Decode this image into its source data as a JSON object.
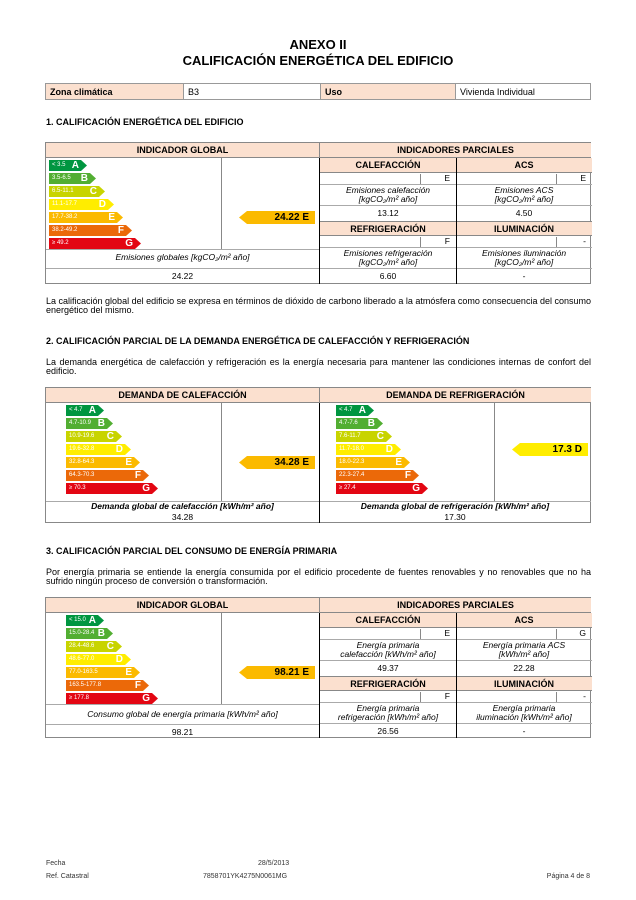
{
  "header": {
    "annex": "ANEXO II",
    "title": "CALIFICACIÓN ENERGÉTICA DEL EDIFICIO"
  },
  "info": {
    "zona_label": "Zona climática",
    "zona_value": "B3",
    "uso_label": "Uso",
    "uso_value": "Vivienda Individual"
  },
  "colors": {
    "A": "#009640",
    "B": "#52ae32",
    "C": "#c8d400",
    "D": "#ffed00",
    "E": "#fbba00",
    "F": "#eb6909",
    "G": "#e30613",
    "header_bg": "#fbe0cf"
  },
  "s1": {
    "heading": "1. CALIFICACIÓN ENERGÉTICA DEL EDIFICIO",
    "global_header": "INDICADOR GLOBAL",
    "partial_header": "INDICADORES PARCIALES",
    "scale": [
      "< 3.5",
      "3.5-6.5",
      "6.5-11.1",
      "11.1-17.7",
      "17.7-38.2",
      "38.2-49.2",
      "≥ 49.2"
    ],
    "pointer": {
      "value": "24.22",
      "letter": "E"
    },
    "global_label": "Emisiones globales [kgCO₂/m² año]",
    "global_value": "24.22",
    "cal": {
      "title": "CALEFACCIÓN",
      "letter": "E",
      "label1": "Emisiones calefacción",
      "label2": "[kgCO₂/m² año]",
      "value": "13.12"
    },
    "acs": {
      "title": "ACS",
      "letter": "E",
      "label1": "Emisiones ACS",
      "label2": "[kgCO₂/m² año]",
      "value": "4.50"
    },
    "ref": {
      "title": "REFRIGERACIÓN",
      "letter": "F",
      "label1": "Emisiones refrigeración",
      "label2": "[kgCO₂/m² año]",
      "value": "6.60"
    },
    "ilu": {
      "title": "ILUMINACIÓN",
      "letter": "-",
      "label1": "Emisiones iluminación",
      "label2": "[kgCO₂/m² año]",
      "value": "-"
    },
    "note": "La calificación global del edificio se expresa en términos de dióxido de carbono liberado a la atmósfera como consecuencia del consumo energético del mismo."
  },
  "s2": {
    "heading": "2. CALIFICACIÓN PARCIAL DE LA DEMANDA ENERGÉTICA DE CALEFACCIÓN Y REFRIGERACIÓN",
    "intro": "La demanda energética de calefacción y refrigeración es la energía necesaria para mantener las condiciones internas de confort del edificio.",
    "heat": {
      "header": "DEMANDA DE CALEFACCIÓN",
      "scale": [
        "< 4.7",
        "4.7-10.9",
        "10.9-19.6",
        "19.6-32.8",
        "32.8-64.3",
        "64.3-70.3",
        "≥ 70.3"
      ],
      "pointer": {
        "value": "34.28",
        "letter": "E"
      },
      "label": "Demanda global de calefacción [kWh/m² año]",
      "value": "34.28"
    },
    "cool": {
      "header": "DEMANDA DE REFRIGERACIÓN",
      "scale": [
        "< 4.7",
        "4.7-7.6",
        "7.6-11.7",
        "11.7-18.0",
        "18.0-22.3",
        "22.3-27.4",
        "≥ 27.4"
      ],
      "pointer": {
        "value": "17.3",
        "letter": "D"
      },
      "label": "Demanda global de refrigeración [kWh/m² año]",
      "value": "17.30"
    }
  },
  "s3": {
    "heading": "3. CALIFICACIÓN PARCIAL DEL CONSUMO DE ENERGÍA PRIMARIA",
    "intro": "Por energía primaria se entiende la energía consumida por el edificio procedente de fuentes renovables y no renovables que no ha sufrido ningún proceso de conversión o transformación.",
    "global_header": "INDICADOR GLOBAL",
    "partial_header": "INDICADORES PARCIALES",
    "scale": [
      "< 15.0",
      "15.0-28.4",
      "28.4-48.6",
      "48.6-77.0",
      "77.0-163.5",
      "163.5-177.8",
      "≥ 177.8"
    ],
    "pointer": {
      "value": "98.21",
      "letter": "E"
    },
    "global_label": "Consumo global de energía primaria [kWh/m² año]",
    "global_value": "98.21",
    "cal": {
      "title": "CALEFACCIÓN",
      "letter": "E",
      "label1": "Energía primaria",
      "label2": "calefacción [kWh/m² año]",
      "value": "49.37"
    },
    "acs": {
      "title": "ACS",
      "letter": "G",
      "label1": "Energía primaria ACS",
      "label2": "[kWh/m² año]",
      "value": "22.28"
    },
    "ref": {
      "title": "REFRIGERACIÓN",
      "letter": "F",
      "label1": "Energía primaria",
      "label2": "refrigeración [kWh/m² año]",
      "value": "26.56"
    },
    "ilu": {
      "title": "ILUMINACIÓN",
      "letter": "-",
      "label1": "Energía primaria",
      "label2": "iluminación [kWh/m² año]",
      "value": "-"
    }
  },
  "footer": {
    "fecha_label": "Fecha",
    "fecha_value": "28/5/2013",
    "ref_label": "Ref. Catastral",
    "ref_value": "7858701YK4275N0061MG",
    "page": "Página 4 de 8"
  }
}
